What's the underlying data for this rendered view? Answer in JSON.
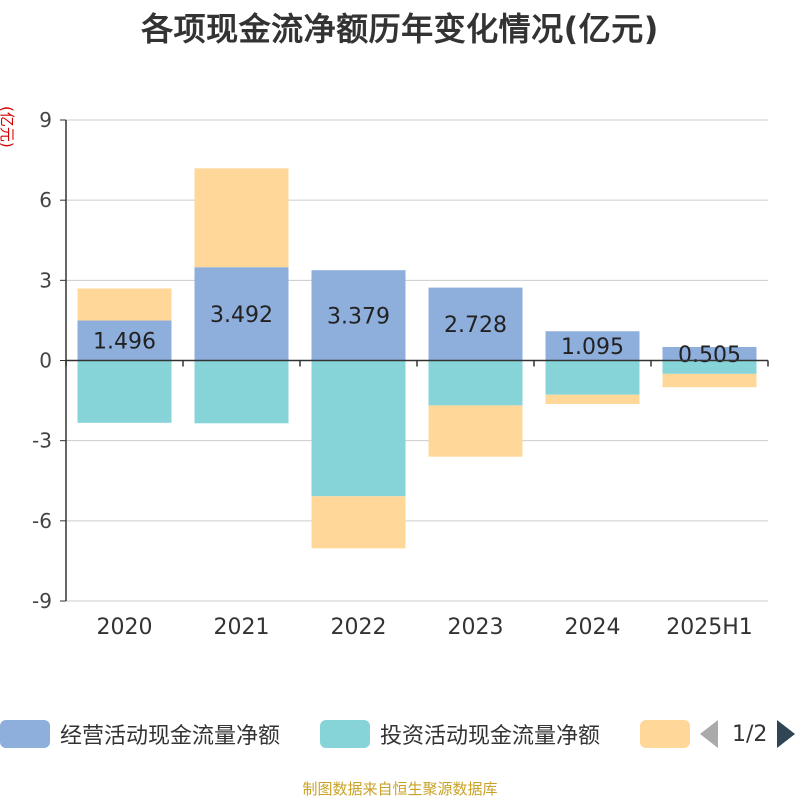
{
  "title": "各项现金流净额历年变化情况(亿元)",
  "unit_label": "(亿元)",
  "source": "制图数据来自恒生聚源数据库",
  "colors": {
    "operating": "#8eaedc",
    "investing": "#86d4d8",
    "financing": "#ffd899",
    "axis": "#333333",
    "grid": "#cccccc",
    "label": "#222222"
  },
  "legend": {
    "items": [
      {
        "label": "经营活动现金流量净额",
        "color": "#8eaedc"
      },
      {
        "label": "投资活动现金流量净额",
        "color": "#86d4d8"
      },
      {
        "label": "",
        "color": "#ffd899"
      }
    ],
    "pager_text": "1/2",
    "prev_icon": "triangle-left-icon",
    "next_icon": "triangle-right-icon"
  },
  "chart_data": {
    "type": "bar",
    "stacked": true,
    "categories": [
      "2020",
      "2021",
      "2022",
      "2023",
      "2024",
      "2025H1"
    ],
    "ylim": [
      -9,
      9
    ],
    "yticks": [
      -9,
      -6,
      -3,
      0,
      3,
      6,
      9
    ],
    "grid": true,
    "series": [
      {
        "name": "经营活动现金流量净额",
        "values": [
          1.496,
          3.492,
          3.379,
          2.728,
          1.095,
          0.505
        ],
        "data_labels": [
          "1.496",
          "3.492",
          "3.379",
          "2.728",
          "1.095",
          "0.505"
        ]
      },
      {
        "name": "投资活动现金流量净额",
        "values": [
          -2.33,
          -2.35,
          -5.08,
          -1.68,
          -1.28,
          -0.5
        ]
      },
      {
        "name": "",
        "values": [
          1.2,
          3.7,
          -1.95,
          -1.92,
          -0.35,
          -0.5
        ]
      }
    ]
  }
}
